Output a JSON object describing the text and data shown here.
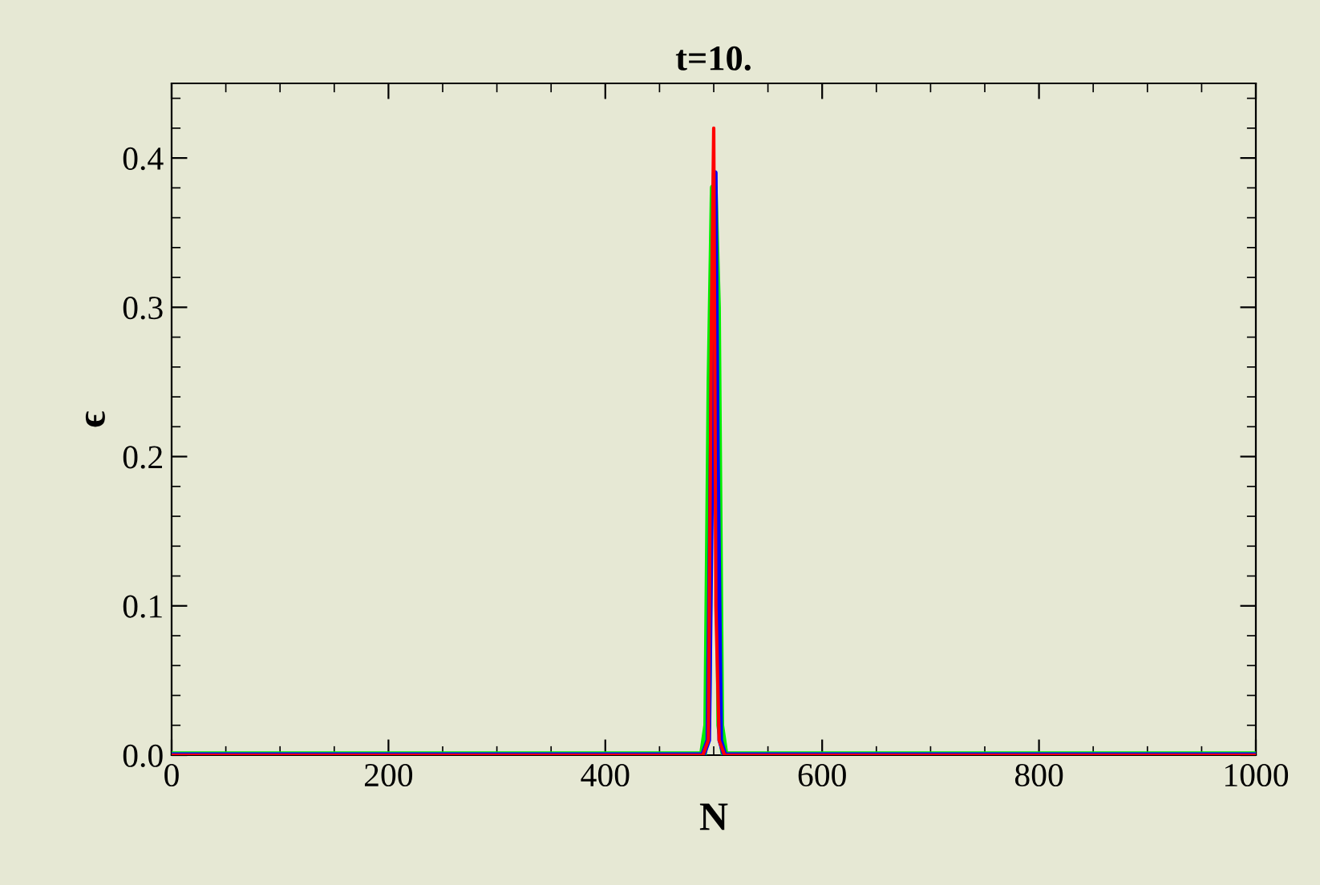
{
  "chart_data": {
    "type": "line",
    "title": "t=10.",
    "xlabel": "N",
    "ylabel": "ϵ",
    "xlim": [
      0,
      1000
    ],
    "ylim": [
      0,
      0.45
    ],
    "xticks": [
      0,
      200,
      400,
      600,
      800,
      1000
    ],
    "yticks": [
      {
        "value": 0,
        "label": "0.0"
      },
      0.1,
      0.2,
      0.3,
      0.4
    ],
    "grid": false,
    "legend": false,
    "marker": "none",
    "line_style": "solid",
    "series": [
      {
        "color": "#ff0000",
        "x": [
          0,
          490,
          495,
          498,
          500,
          502,
          505,
          510,
          1000
        ],
        "values": [
          0,
          0,
          0.01,
          0.3,
          0.42,
          0.1,
          0.01,
          0,
          0
        ]
      },
      {
        "color": "#0000ff",
        "x": [
          0,
          490,
          495,
          498,
          501,
          503,
          506,
          510,
          1000
        ],
        "values": [
          0,
          0,
          0.01,
          0.2,
          0.39,
          0.2,
          0.01,
          0,
          0
        ]
      },
      {
        "color": "#00ee00",
        "x": [
          0,
          490,
          494,
          497,
          500,
          503,
          506,
          510,
          1000
        ],
        "values": [
          0,
          0,
          0.02,
          0.25,
          0.38,
          0.3,
          0.02,
          0,
          0
        ]
      }
    ]
  }
}
